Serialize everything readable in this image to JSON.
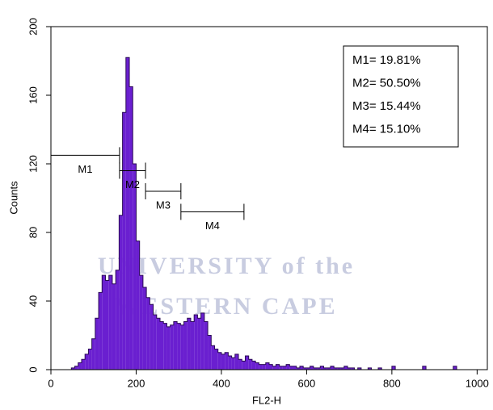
{
  "chart_data": {
    "type": "histogram",
    "xlabel": "FL2-H",
    "ylabel": "Counts",
    "xlim": [
      0,
      1024
    ],
    "ylim": [
      0,
      200
    ],
    "xticks": [
      0,
      200,
      400,
      600,
      800,
      1000
    ],
    "yticks": [
      0,
      40,
      80,
      120,
      160,
      200
    ],
    "color": "#6a1fd0",
    "bins": [
      0,
      8,
      16,
      24,
      32,
      40,
      48,
      56,
      64,
      72,
      80,
      88,
      96,
      104,
      112,
      120,
      128,
      136,
      144,
      152,
      160,
      168,
      176,
      184,
      192,
      200,
      208,
      216,
      224,
      232,
      240,
      248,
      256,
      264,
      272,
      280,
      288,
      296,
      304,
      312,
      320,
      328,
      336,
      344,
      352,
      360,
      368,
      376,
      384,
      392,
      400,
      408,
      416,
      424,
      432,
      440,
      448,
      456,
      464,
      472,
      480,
      488,
      496,
      504,
      512,
      520,
      528,
      536,
      544,
      552,
      560,
      568,
      576,
      584,
      592,
      600,
      608,
      616,
      624,
      632,
      640,
      648,
      656,
      664,
      672,
      680,
      688,
      696,
      704,
      712,
      720,
      728,
      736,
      744,
      752,
      760,
      768,
      776,
      784,
      792,
      800,
      808,
      816,
      824,
      832,
      840,
      848,
      856,
      864,
      872,
      880,
      888,
      896,
      904,
      912,
      920,
      928,
      936,
      944,
      952,
      960,
      968,
      976,
      984,
      992,
      1000,
      1008,
      1016,
      1024
    ],
    "values": [
      0,
      0,
      0,
      0,
      0,
      0,
      1,
      2,
      4,
      6,
      9,
      12,
      18,
      30,
      45,
      55,
      52,
      55,
      50,
      58,
      90,
      150,
      182,
      165,
      120,
      75,
      55,
      48,
      42,
      38,
      32,
      30,
      28,
      27,
      25,
      26,
      28,
      27,
      26,
      28,
      30,
      28,
      32,
      30,
      33,
      28,
      20,
      14,
      12,
      10,
      9,
      10,
      8,
      7,
      9,
      6,
      5,
      8,
      6,
      5,
      4,
      3,
      3,
      4,
      3,
      2,
      3,
      2,
      2,
      3,
      2,
      2,
      1,
      2,
      1,
      1,
      2,
      1,
      1,
      2,
      1,
      1,
      2,
      1,
      1,
      1,
      2,
      1,
      1,
      0,
      1,
      0,
      0,
      1,
      0,
      0,
      1,
      0,
      0,
      0,
      2,
      0,
      0,
      0,
      0,
      0,
      0,
      0,
      0,
      2,
      0,
      0,
      0,
      0,
      0,
      0,
      0,
      0,
      2,
      0,
      0,
      0,
      0,
      0,
      0,
      0,
      0,
      0
    ],
    "markers": [
      {
        "name": "M1",
        "x": [
          0,
          161
        ],
        "y": 125
      },
      {
        "name": "M2",
        "x": [
          161,
          222
        ],
        "y": 116
      },
      {
        "name": "M3",
        "x": [
          222,
          305
        ],
        "y": 104
      },
      {
        "name": "M4",
        "x": [
          305,
          453
        ],
        "y": 92
      }
    ],
    "stats": [
      "M1= 19.81%",
      "M2= 50.50%",
      "M3= 15.44%",
      "M4= 15.10%"
    ],
    "watermark": [
      "UNIVERSITY of the",
      "WESTERN CAPE"
    ]
  }
}
